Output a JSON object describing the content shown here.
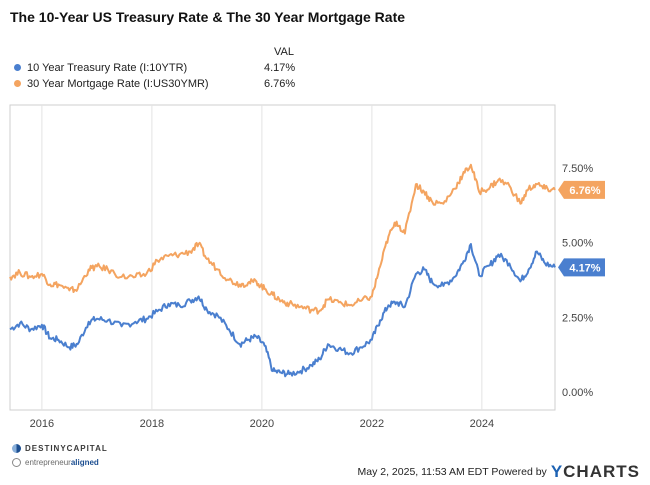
{
  "chart_data": {
    "type": "line",
    "title": "The 10-Year US Treasury Rate & The 30 Year Mortgage Rate",
    "legend": {
      "header": "VAL",
      "placement": "top-left"
    },
    "x_ticks": [
      "2016",
      "2018",
      "2020",
      "2022",
      "2024"
    ],
    "y_ticks": [
      "0.00%",
      "2.50%",
      "5.00%",
      "7.50%"
    ],
    "xlim": [
      2015.42,
      2025.33
    ],
    "ylim": [
      -0.6,
      9.6
    ],
    "grid": "vertical",
    "series": [
      {
        "name": "10 Year Treasury Rate (I:10YTR)",
        "color": "#4a7fcf",
        "last_label": "4.17%",
        "x": [
          2015.42,
          2015.6,
          2015.8,
          2016.0,
          2016.15,
          2016.3,
          2016.5,
          2016.65,
          2016.85,
          2017.0,
          2017.2,
          2017.45,
          2017.7,
          2017.9,
          2018.1,
          2018.3,
          2018.5,
          2018.7,
          2018.85,
          2019.0,
          2019.2,
          2019.4,
          2019.6,
          2019.75,
          2019.9,
          2020.05,
          2020.2,
          2020.35,
          2020.5,
          2020.7,
          2020.9,
          2021.05,
          2021.2,
          2021.4,
          2021.6,
          2021.8,
          2022.0,
          2022.15,
          2022.3,
          2022.45,
          2022.6,
          2022.8,
          2022.95,
          2023.1,
          2023.3,
          2023.5,
          2023.65,
          2023.8,
          2023.95,
          2024.15,
          2024.3,
          2024.5,
          2024.7,
          2024.85,
          2025.0,
          2025.15,
          2025.33
        ],
        "y": [
          2.1,
          2.3,
          2.1,
          2.25,
          1.8,
          1.75,
          1.5,
          1.6,
          2.35,
          2.45,
          2.4,
          2.2,
          2.35,
          2.45,
          2.7,
          2.95,
          2.9,
          3.05,
          3.2,
          2.75,
          2.55,
          2.1,
          1.6,
          1.75,
          1.85,
          1.55,
          0.7,
          0.65,
          0.6,
          0.7,
          0.9,
          1.1,
          1.6,
          1.45,
          1.3,
          1.5,
          1.75,
          2.4,
          2.9,
          3.0,
          2.85,
          3.95,
          4.1,
          3.65,
          3.55,
          3.85,
          4.3,
          4.95,
          3.9,
          4.25,
          4.6,
          4.3,
          3.7,
          4.1,
          4.7,
          4.3,
          4.17
        ]
      },
      {
        "name": "30 Year Mortgage Rate (I:US30YMR)",
        "color": "#f4a460",
        "last_label": "6.76%",
        "x": [
          2015.42,
          2015.6,
          2015.8,
          2016.0,
          2016.15,
          2016.3,
          2016.5,
          2016.65,
          2016.85,
          2017.0,
          2017.2,
          2017.45,
          2017.7,
          2017.9,
          2018.1,
          2018.3,
          2018.5,
          2018.7,
          2018.85,
          2019.0,
          2019.2,
          2019.4,
          2019.6,
          2019.75,
          2019.9,
          2020.05,
          2020.2,
          2020.35,
          2020.5,
          2020.7,
          2020.9,
          2021.05,
          2021.2,
          2021.4,
          2021.6,
          2021.8,
          2022.0,
          2022.15,
          2022.3,
          2022.45,
          2022.6,
          2022.8,
          2022.95,
          2023.1,
          2023.3,
          2023.5,
          2023.65,
          2023.8,
          2023.95,
          2024.15,
          2024.3,
          2024.5,
          2024.7,
          2024.85,
          2025.0,
          2025.15,
          2025.33
        ],
        "y": [
          3.85,
          4.0,
          3.85,
          3.95,
          3.6,
          3.6,
          3.4,
          3.45,
          4.1,
          4.2,
          4.1,
          3.85,
          3.85,
          3.95,
          4.4,
          4.55,
          4.6,
          4.7,
          4.95,
          4.45,
          4.1,
          3.75,
          3.6,
          3.65,
          3.7,
          3.45,
          3.25,
          3.05,
          2.95,
          2.85,
          2.75,
          2.72,
          3.1,
          3.0,
          2.9,
          3.05,
          3.2,
          4.2,
          5.2,
          5.7,
          5.3,
          6.95,
          6.7,
          6.35,
          6.3,
          6.8,
          7.25,
          7.6,
          6.7,
          6.85,
          7.1,
          6.9,
          6.3,
          6.8,
          6.95,
          6.8,
          6.76
        ]
      }
    ]
  },
  "footer": {
    "timestamp": "May 2, 2025, 11:53 AM EDT Powered by",
    "brand": "YCHARTS",
    "brand_y": "Y",
    "brand_rest": "CHARTS",
    "logo1": "DESTINYCAPITAL",
    "logo2_a": "entrepreneur",
    "logo2_b": "aligned"
  }
}
